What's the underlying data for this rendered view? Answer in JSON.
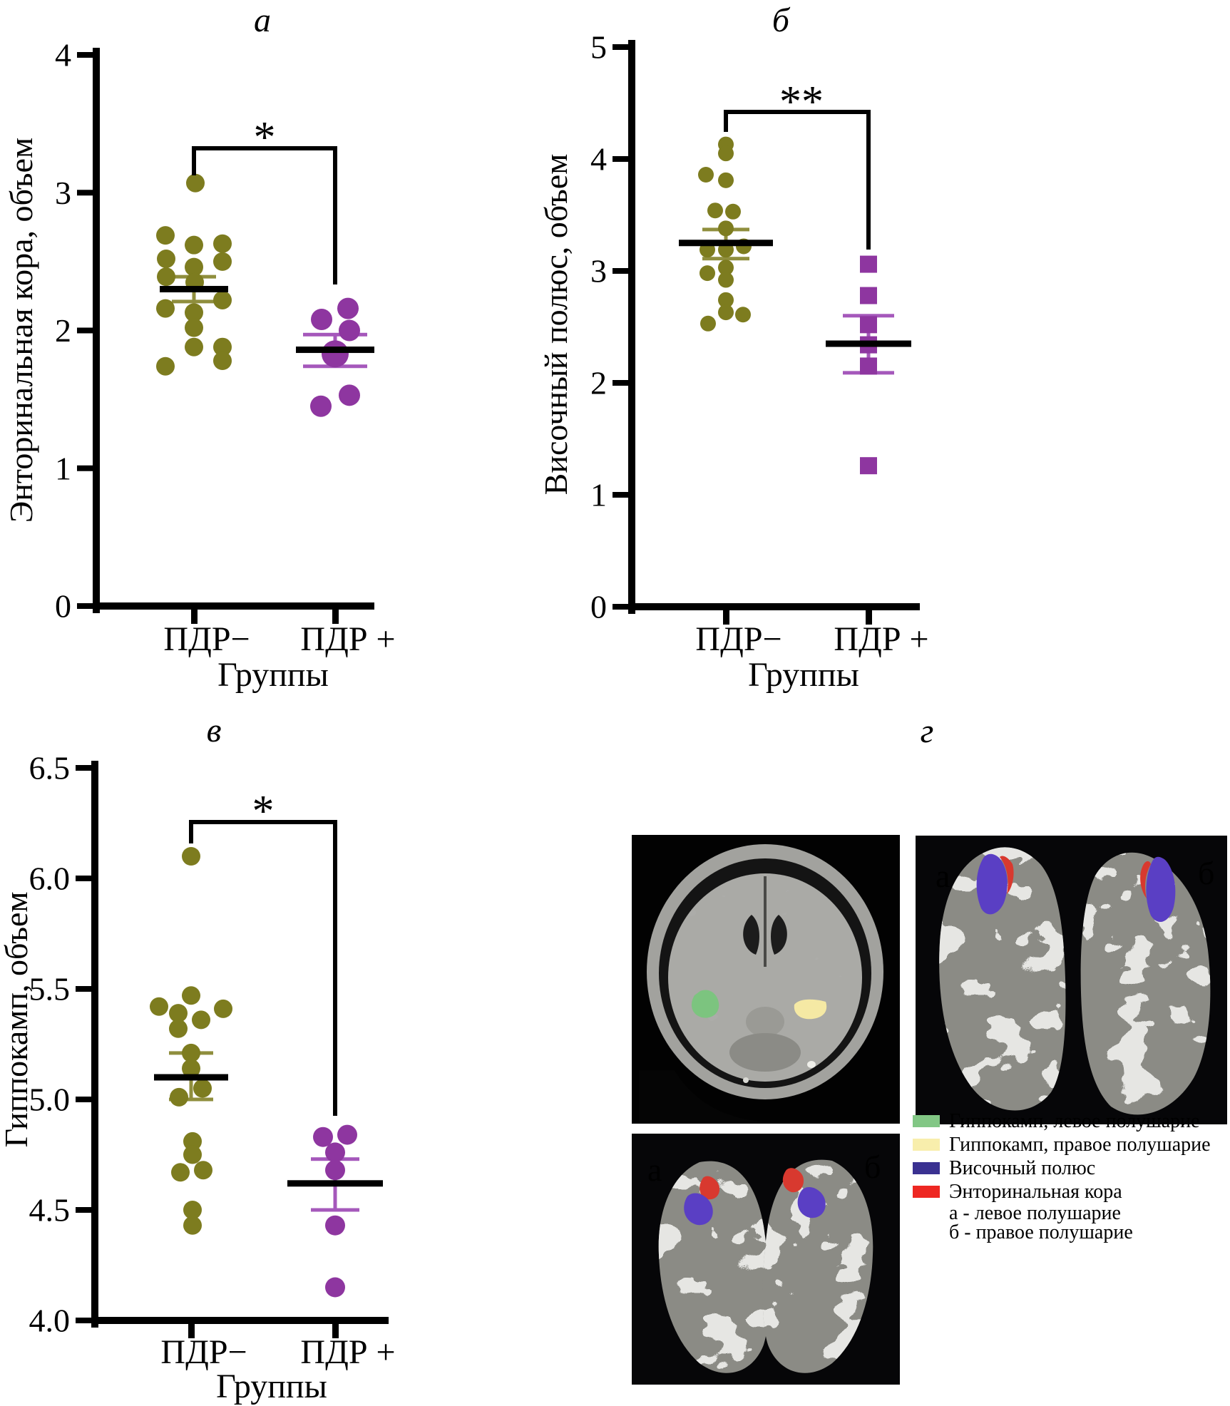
{
  "chart_data": [
    {
      "type": "scatter",
      "panel_id": "a",
      "title": "а",
      "ylabel": "Энторинальная кора, объем",
      "xlabel": "Группы",
      "categories": [
        "ПДР−",
        "ПДР +"
      ],
      "ylim": [
        0,
        4
      ],
      "yticks": [
        "4",
        "3",
        "2",
        "1",
        "0"
      ],
      "ytick_values": [
        4,
        3,
        2,
        1,
        0
      ],
      "grid": false,
      "significance": "*",
      "series": [
        {
          "name": "ПДР−",
          "marker": "circle",
          "color": "#7d7c1f",
          "error_color": "#8f8e3d",
          "values": [
            3.07,
            2.69,
            2.63,
            2.62,
            2.52,
            2.5,
            2.46,
            2.39,
            2.35,
            2.22,
            2.16,
            2.13,
            2.02,
            1.88,
            1.88,
            1.78,
            1.74
          ],
          "jitter": [
            2,
            -40,
            40,
            0,
            -39,
            40,
            0,
            -39,
            1,
            40,
            -40,
            0,
            0,
            0,
            40,
            40,
            -40
          ],
          "mean": 2.3,
          "err_low": 2.21,
          "err_high": 2.39
        },
        {
          "name": "ПДР +",
          "marker": "circle",
          "color": "#8e36a0",
          "error_color": "#a558bb",
          "values": [
            2.16,
            2.08,
            2.0,
            1.83,
            1.53,
            1.45
          ],
          "jitter": [
            18,
            -19,
            20,
            0,
            20,
            -20
          ],
          "big_point_index": 3,
          "mean": 1.86,
          "err_low": 1.74,
          "err_high": 1.97
        }
      ]
    },
    {
      "type": "scatter",
      "panel_id": "b",
      "title": "б",
      "ylabel": "Височный полюс, объем",
      "xlabel": "Группы",
      "categories": [
        "ПДР−",
        "ПДР +"
      ],
      "ylim": [
        0,
        5
      ],
      "yticks": [
        "5",
        "4",
        "3",
        "2",
        "1",
        "0"
      ],
      "ytick_values": [
        5,
        4,
        3,
        2,
        1,
        0
      ],
      "grid": false,
      "significance": "**",
      "series": [
        {
          "name": "ПДР−",
          "marker": "circle",
          "color": "#7d7c1f",
          "error_color": "#8f8e3d",
          "values": [
            4.13,
            4.05,
            3.86,
            3.81,
            3.54,
            3.53,
            3.38,
            3.22,
            3.19,
            3.19,
            3.03,
            2.98,
            2.92,
            2.74,
            2.63,
            2.61,
            2.53
          ],
          "jitter": [
            0,
            0,
            -28,
            0,
            -15,
            10,
            0,
            25,
            -26,
            0,
            0,
            -26,
            0,
            0,
            0,
            24,
            -25
          ],
          "mean": 3.25,
          "err_low": 3.11,
          "err_high": 3.37
        },
        {
          "name": "ПДР +",
          "marker": "square",
          "color": "#8e36a0",
          "error_color": "#a558bb",
          "values": [
            3.06,
            2.78,
            2.52,
            2.34,
            2.15,
            1.26
          ],
          "jitter": [
            0,
            0,
            0,
            0,
            0,
            0
          ],
          "mean": 2.35,
          "err_low": 2.09,
          "err_high": 2.6
        }
      ]
    },
    {
      "type": "scatter",
      "panel_id": "v",
      "title": "в",
      "ylabel": "Гиппокамп, объем",
      "xlabel": "Группы",
      "categories": [
        "ПДР−",
        "ПДР +"
      ],
      "ylim": [
        4.0,
        6.5
      ],
      "yticks": [
        "6.5",
        "6.0",
        "5.5",
        "5.0",
        "4.5",
        "4.0"
      ],
      "ytick_values": [
        6.5,
        6.0,
        5.5,
        5.0,
        4.5,
        4.0
      ],
      "grid": false,
      "significance": "*",
      "series": [
        {
          "name": "ПДР−",
          "marker": "circle",
          "color": "#7d7c1f",
          "error_color": "#8f8e3d",
          "values": [
            6.1,
            5.47,
            5.42,
            5.41,
            5.39,
            5.36,
            5.32,
            5.21,
            5.14,
            5.05,
            5.01,
            4.81,
            4.75,
            4.68,
            4.67,
            4.5,
            4.43
          ],
          "jitter": [
            0,
            0,
            -45,
            45,
            -18,
            14,
            -18,
            0,
            0,
            16,
            -17,
            2,
            2,
            17,
            -15,
            2,
            2
          ],
          "mean": 5.1,
          "err_low": 5.0,
          "err_high": 5.21
        },
        {
          "name": "ПДР +",
          "marker": "circle",
          "color": "#8e36a0",
          "error_color": "#a558bb",
          "values": [
            4.84,
            4.83,
            4.76,
            4.68,
            4.43,
            4.15
          ],
          "jitter": [
            17,
            -17,
            0,
            0,
            0,
            0
          ],
          "mean": 4.62,
          "err_low": 4.5,
          "err_high": 4.73
        }
      ]
    }
  ],
  "panel_g": {
    "title": "г",
    "surface_top_labels": [
      "а",
      "б"
    ],
    "surface_bottom_labels": [
      "а",
      "б"
    ],
    "legend": {
      "items": [
        {
          "color": "#82c785",
          "label": "Гиппокамп, левое полушарие"
        },
        {
          "color": "#f8eeac",
          "label": "Гиппокамп, правое полушарие"
        },
        {
          "color": "#3a3191",
          "label": "Височный полюс"
        },
        {
          "color": "#ee2722",
          "label": "Энторинальная кора"
        }
      ],
      "sublines": [
        "а - левое полушарие",
        "б - правое полушарие"
      ]
    },
    "region_colors": {
      "temporal_pole": "#5a3fc4",
      "entorhinal": "#d8392f",
      "hippocampus_left": "#7cc47f",
      "hippocampus_right": "#f5e9a4"
    }
  }
}
